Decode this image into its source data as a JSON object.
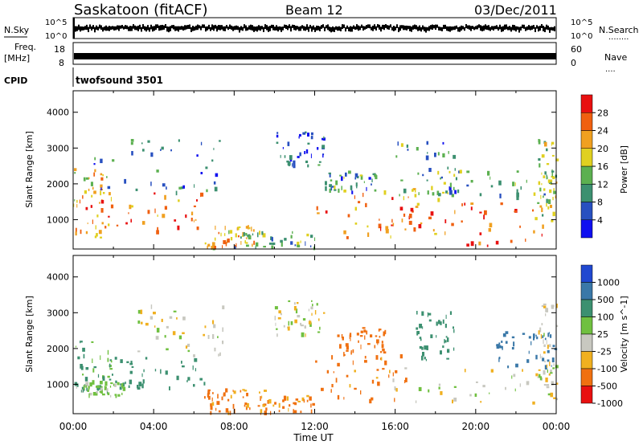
{
  "header": {
    "station": "Saskatoon (fitACF)",
    "beam": "Beam 12",
    "date": "03/Dec/2011"
  },
  "strips": {
    "nsky_label": "N.Sky",
    "nsearch_label": "N.Search",
    "nsearch_dots": "........",
    "noise_ticks": [
      "10^5",
      "10^0"
    ],
    "freq_label_1": "Freq.",
    "freq_label_2": "[MHz]",
    "freq_ticks": [
      "18",
      "8"
    ],
    "nave_label": "Nave",
    "nave_dots": "....",
    "nave_ticks": [
      "60",
      "0"
    ],
    "cpid_label": "CPID",
    "cpid_value": "twofsound 3501"
  },
  "chart_data": [
    {
      "type": "heatmap",
      "panel": "power",
      "xlabel": "",
      "ylabel": "Slant Range [km]",
      "xlim": [
        0,
        24
      ],
      "ylim": [
        180,
        4600
      ],
      "yticks": [
        1000,
        2000,
        3000,
        4000
      ],
      "colorbar": {
        "label": "Power [dB]",
        "ticks": [
          "4",
          "8",
          "12",
          "16",
          "20",
          "24",
          "28"
        ],
        "colors": [
          "#1010f0",
          "#2850c0",
          "#3c9070",
          "#5cb050",
          "#e0d020",
          "#f0a020",
          "#f06010",
          "#e81010"
        ]
      },
      "regions": [
        {
          "t": [
            0.0,
            1.5
          ],
          "range": [
            500,
            2500
          ],
          "level": 20
        },
        {
          "t": [
            0.5,
            6.5
          ],
          "range": [
            700,
            1800
          ],
          "level": 26
        },
        {
          "t": [
            1.0,
            7.5
          ],
          "range": [
            1800,
            3300
          ],
          "level": 8
        },
        {
          "t": [
            6.5,
            9.0
          ],
          "range": [
            250,
            900
          ],
          "level": 20
        },
        {
          "t": [
            8.0,
            12.0
          ],
          "range": [
            250,
            700
          ],
          "level": 12
        },
        {
          "t": [
            10.0,
            12.5
          ],
          "range": [
            2500,
            3500
          ],
          "level": 6
        },
        {
          "t": [
            12.0,
            18.0
          ],
          "range": [
            500,
            1900
          ],
          "level": 24
        },
        {
          "t": [
            12.5,
            15.0
          ],
          "range": [
            1800,
            2400
          ],
          "level": 10
        },
        {
          "t": [
            16.0,
            19.0
          ],
          "range": [
            1700,
            3200
          ],
          "level": 10
        },
        {
          "t": [
            16.0,
            23.5
          ],
          "range": [
            300,
            1500
          ],
          "level": 26
        },
        {
          "t": [
            18.0,
            24.0
          ],
          "range": [
            1500,
            2400
          ],
          "level": 12
        },
        {
          "t": [
            23.0,
            24.0
          ],
          "range": [
            1000,
            3300
          ],
          "level": 18
        }
      ]
    },
    {
      "type": "heatmap",
      "panel": "velocity",
      "xlabel": "Time UT",
      "ylabel": "Slant Range [km]",
      "xlim": [
        0,
        24
      ],
      "ylim": [
        180,
        4600
      ],
      "yticks": [
        1000,
        2000,
        3000,
        4000
      ],
      "xticks": [
        "00:00",
        "04:00",
        "08:00",
        "12:00",
        "16:00",
        "20:00",
        "00:00"
      ],
      "colorbar": {
        "label": "Velocity [m s^-1]",
        "ticks": [
          "1000",
          "500",
          "100",
          "25",
          "-25",
          "-100",
          "-500",
          "-1000"
        ],
        "colors": [
          "#2048d0",
          "#3a78a8",
          "#3c9070",
          "#70c040",
          "#c8c8c0",
          "#f0b020",
          "#f07010",
          "#e81010"
        ]
      },
      "regions": [
        {
          "t": [
            0.0,
            2.0
          ],
          "range": [
            700,
            2300
          ],
          "level": 100
        },
        {
          "t": [
            1.0,
            6.5
          ],
          "range": [
            900,
            1800
          ],
          "level": 400
        },
        {
          "t": [
            0.0,
            2.5
          ],
          "range": [
            700,
            1100
          ],
          "level": 50
        },
        {
          "t": [
            3.0,
            7.5
          ],
          "range": [
            1800,
            3300
          ],
          "level": 0
        },
        {
          "t": [
            6.5,
            9.5
          ],
          "range": [
            250,
            900
          ],
          "level": -120
        },
        {
          "t": [
            8.5,
            12.0
          ],
          "range": [
            250,
            700
          ],
          "level": -130
        },
        {
          "t": [
            10.0,
            12.5
          ],
          "range": [
            2400,
            3500
          ],
          "level": 0
        },
        {
          "t": [
            12.0,
            16.5
          ],
          "range": [
            500,
            1900
          ],
          "level": -140
        },
        {
          "t": [
            13.0,
            15.5
          ],
          "range": [
            1900,
            2600
          ],
          "level": -200
        },
        {
          "t": [
            15.5,
            24.0
          ],
          "range": [
            300,
            1500
          ],
          "level": 0
        },
        {
          "t": [
            17.0,
            19.0
          ],
          "range": [
            1700,
            3200
          ],
          "level": 300
        },
        {
          "t": [
            21.0,
            24.0
          ],
          "range": [
            1500,
            2500
          ],
          "level": 600
        },
        {
          "t": [
            23.0,
            24.0
          ],
          "range": [
            1000,
            3300
          ],
          "level": 0
        }
      ]
    }
  ]
}
